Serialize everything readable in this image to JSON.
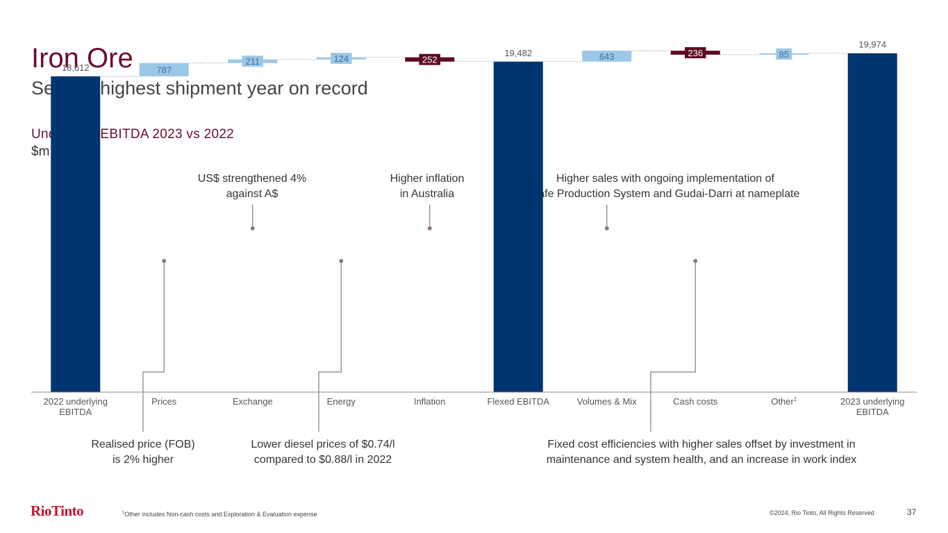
{
  "header": {
    "title": "Iron Ore",
    "subtitle": "Second highest shipment year on record"
  },
  "chart_header": {
    "title": "Underlying EBITDA 2023 vs 2022",
    "unit": "$m"
  },
  "callouts": {
    "exchange_l1": "US$ strengthened 4%",
    "exchange_l2": "against A$",
    "inflation_l1": "Higher inflation",
    "inflation_l2": "in Australia",
    "volumes_l1": "Higher sales with ongoing implementation of",
    "volumes_l2": "Safe Production System and Gudai-Darri at nameplate",
    "prices_l1": "Realised price (FOB)",
    "prices_l2": "is 2% higher",
    "energy_l1": "Lower diesel prices of $0.74/l",
    "energy_l2": "compared to $0.88/l in 2022",
    "cash_l1": "Fixed cost efficiencies with higher sales offset by investment in",
    "cash_l2": "maintenance and system health, and an increase in work index"
  },
  "chart_data": {
    "type": "waterfall",
    "title": "Underlying EBITDA 2023 vs 2022",
    "ylabel": "$m",
    "ylim": [
      0,
      22500
    ],
    "grid": false,
    "categories": [
      [
        "2022 underlying",
        "EBITDA"
      ],
      [
        "Prices"
      ],
      [
        "Exchange"
      ],
      [
        "Energy"
      ],
      [
        "Inflation"
      ],
      [
        "Flexed EBITDA"
      ],
      [
        "Volumes & Mix"
      ],
      [
        "Cash costs"
      ],
      [
        "Other",
        "1"
      ],
      [
        "2023 underlying",
        "EBITDA"
      ]
    ],
    "steps": [
      {
        "kind": "total",
        "value": 18612,
        "label": "18,612"
      },
      {
        "kind": "increase",
        "value": 787,
        "label": "787"
      },
      {
        "kind": "increase",
        "value": 211,
        "label": "211"
      },
      {
        "kind": "increase",
        "value": 124,
        "label": "124"
      },
      {
        "kind": "decrease",
        "value": -252,
        "label": "252"
      },
      {
        "kind": "total",
        "value": 19482,
        "label": "19,482"
      },
      {
        "kind": "increase",
        "value": 643,
        "label": "643"
      },
      {
        "kind": "decrease",
        "value": -236,
        "label": "236"
      },
      {
        "kind": "increase",
        "value": 85,
        "label": "85"
      },
      {
        "kind": "total",
        "value": 19974,
        "label": "19,974"
      }
    ],
    "colors": {
      "total": "#003571",
      "increase": "#9dc7e6",
      "decrease": "#5d0a1f",
      "increase_label": "#3d6e9e",
      "decrease_label": "#ffffff",
      "total_label": "#555555",
      "axis_label": "#555555",
      "connector": "#999999",
      "leader": "#8c7d74"
    }
  },
  "footer": {
    "logo": "RioTinto",
    "footnote_sup": "1",
    "footnote": "Other includes Non-cash costs and Exploration & Evaluation expense",
    "copyright": "©2024, Rio Tinto, All Rights Reserved",
    "page_number": "37"
  }
}
